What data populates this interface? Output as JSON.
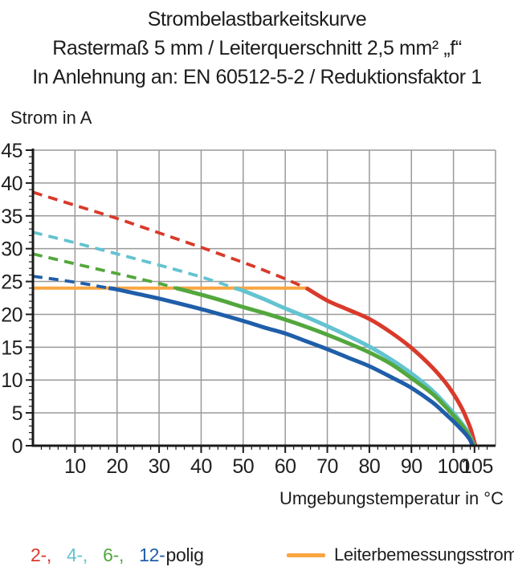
{
  "title": {
    "line1": "Strombelastbarkeitskurve",
    "line2": "Rastermaß 5 mm / Leiterquerschnitt 2,5 mm² „f“",
    "line3": "In Anlehnung an: EN 60512-5-2 / Reduktionsfaktor 1"
  },
  "axis": {
    "y_title": "Strom in A",
    "x_title": "Umgebungstemperatur in °C"
  },
  "legend": {
    "poles": {
      "items": [
        {
          "label": "2-,",
          "color": "#d93a2b"
        },
        {
          "label": "4-,",
          "color": "#63c3d1"
        },
        {
          "label": "6-,",
          "color": "#53a73d"
        },
        {
          "label": "12-",
          "color": "#1f5ea9"
        }
      ],
      "suffix": "polig"
    },
    "rated_label": "Leiterbemessungsstrom"
  },
  "chart_data": {
    "type": "line",
    "title": "Strombelastbarkeitskurve",
    "xlabel": "Umgebungstemperatur in °C",
    "ylabel": "Strom in A",
    "xlim": [
      0,
      110
    ],
    "ylim": [
      0,
      45
    ],
    "x_tick_labels": [
      10,
      20,
      30,
      40,
      50,
      60,
      70,
      80,
      90,
      100,
      105
    ],
    "y_tick_labels": [
      0,
      5,
      10,
      15,
      20,
      25,
      30,
      35,
      40,
      45
    ],
    "x_minor_step": 2,
    "y_minor_step": 1,
    "grid": {
      "x_step": 10,
      "y_step": 5,
      "color": "#9a9a9a",
      "on": true
    },
    "axis_color": "#1a1a1a",
    "legend_position": "bottom",
    "rated_current": {
      "value": 24,
      "x_start": 0,
      "x_end": 65,
      "color": "#f9a642",
      "label": "Leiterbemessungsstrom"
    },
    "dash_note": "curves are dashed above the rated-current line (24 A) and solid below it",
    "series": [
      {
        "name": "2-polig",
        "color": "#d93a2b",
        "solid_from": 65,
        "points": [
          [
            0,
            38.6
          ],
          [
            10,
            36.6
          ],
          [
            20,
            34.6
          ],
          [
            30,
            32.4
          ],
          [
            40,
            30.2
          ],
          [
            50,
            27.9
          ],
          [
            55,
            26.7
          ],
          [
            60,
            25.4
          ],
          [
            65,
            24
          ],
          [
            70,
            22.1
          ],
          [
            75,
            20.7
          ],
          [
            80,
            19.3
          ],
          [
            85,
            17.3
          ],
          [
            90,
            14.9
          ],
          [
            95,
            11.9
          ],
          [
            98,
            9.7
          ],
          [
            100,
            7.9
          ],
          [
            102,
            5.7
          ],
          [
            103,
            4.3
          ],
          [
            104,
            2.7
          ],
          [
            104.7,
            1.2
          ],
          [
            105.2,
            0
          ]
        ]
      },
      {
        "name": "4-polig",
        "color": "#63c3d1",
        "solid_from": 48,
        "points": [
          [
            0,
            32.5
          ],
          [
            10,
            30.9
          ],
          [
            20,
            29.2
          ],
          [
            30,
            27.5
          ],
          [
            40,
            25.7
          ],
          [
            48,
            24
          ],
          [
            50,
            23.6
          ],
          [
            55,
            22.3
          ],
          [
            60,
            20.9
          ],
          [
            65,
            19.6
          ],
          [
            70,
            18.2
          ],
          [
            75,
            16.7
          ],
          [
            80,
            15.1
          ],
          [
            85,
            13.2
          ],
          [
            90,
            11
          ],
          [
            95,
            8.4
          ],
          [
            98,
            6.4
          ],
          [
            100,
            5
          ],
          [
            102,
            3.4
          ],
          [
            103,
            2.5
          ],
          [
            104,
            1.3
          ],
          [
            104.9,
            0
          ]
        ]
      },
      {
        "name": "6-polig",
        "color": "#53a73d",
        "solid_from": 34,
        "points": [
          [
            0,
            29.2
          ],
          [
            10,
            27.7
          ],
          [
            20,
            26.2
          ],
          [
            30,
            24.7
          ],
          [
            34,
            24
          ],
          [
            40,
            23
          ],
          [
            45,
            22.1
          ],
          [
            50,
            21.1
          ],
          [
            55,
            20.2
          ],
          [
            60,
            19.2
          ],
          [
            65,
            18.1
          ],
          [
            70,
            16.9
          ],
          [
            75,
            15.6
          ],
          [
            80,
            14.2
          ],
          [
            85,
            12.5
          ],
          [
            90,
            10.3
          ],
          [
            95,
            7.9
          ],
          [
            98,
            6
          ],
          [
            100,
            4.6
          ],
          [
            102,
            3.1
          ],
          [
            103,
            2.2
          ],
          [
            104,
            1.1
          ],
          [
            104.8,
            0
          ]
        ]
      },
      {
        "name": "12-polig",
        "color": "#1f5ea9",
        "solid_from": 18,
        "points": [
          [
            0,
            25.8
          ],
          [
            10,
            24.9
          ],
          [
            18,
            24
          ],
          [
            20,
            23.8
          ],
          [
            25,
            23.1
          ],
          [
            30,
            22.4
          ],
          [
            40,
            20.8
          ],
          [
            50,
            19
          ],
          [
            55,
            18
          ],
          [
            60,
            17.1
          ],
          [
            65,
            15.9
          ],
          [
            70,
            14.7
          ],
          [
            75,
            13.4
          ],
          [
            80,
            12.1
          ],
          [
            85,
            10.5
          ],
          [
            90,
            8.8
          ],
          [
            95,
            6.6
          ],
          [
            98,
            4.9
          ],
          [
            100,
            3.7
          ],
          [
            102,
            2.4
          ],
          [
            103,
            1.7
          ],
          [
            104,
            0.8
          ],
          [
            104.5,
            0
          ]
        ]
      }
    ]
  }
}
